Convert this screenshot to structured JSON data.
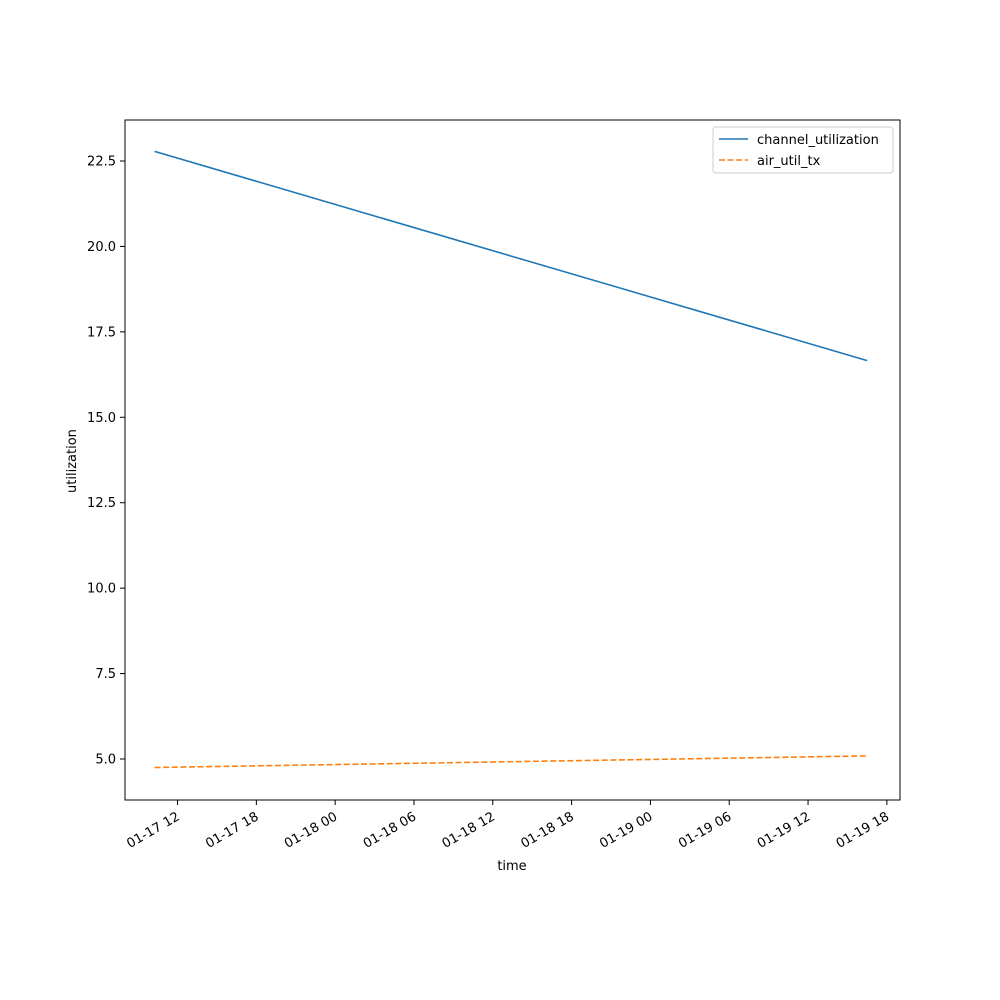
{
  "chart_data": {
    "type": "line",
    "title": "",
    "xlabel": "time",
    "ylabel": "utilization",
    "x_tick_labels": [
      "01-17 12",
      "01-17 18",
      "01-18 00",
      "01-18 06",
      "01-18 12",
      "01-18 18",
      "01-19 00",
      "01-19 06",
      "01-19 12",
      "01-19 18"
    ],
    "x_ticks": [
      "2025-01-17T12:00",
      "2025-01-17T18:00",
      "2025-01-18T00:00",
      "2025-01-18T06:00",
      "2025-01-18T12:00",
      "2025-01-18T18:00",
      "2025-01-19T00:00",
      "2025-01-19T06:00",
      "2025-01-19T12:00",
      "2025-01-19T18:00"
    ],
    "xlim": [
      "2025-01-17T08:00",
      "2025-01-19T19:00"
    ],
    "y_tick_labels": [
      "5.0",
      "7.5",
      "10.0",
      "12.5",
      "15.0",
      "17.5",
      "20.0",
      "22.5"
    ],
    "y_ticks": [
      5.0,
      7.5,
      10.0,
      12.5,
      15.0,
      17.5,
      20.0,
      22.5
    ],
    "ylim": [
      3.8,
      23.7
    ],
    "grid": false,
    "legend": "top-right",
    "series": [
      {
        "name": "channel_utilization",
        "color": "#1f77b4",
        "style": "solid",
        "x": [
          "2025-01-17T10:15",
          "2025-01-19T16:30"
        ],
        "values": [
          22.78,
          16.66
        ]
      },
      {
        "name": "air_util_tx",
        "color": "#ff7f0e",
        "style": "dashed",
        "x": [
          "2025-01-17T10:15",
          "2025-01-19T16:30"
        ],
        "values": [
          4.75,
          5.09
        ]
      }
    ]
  }
}
